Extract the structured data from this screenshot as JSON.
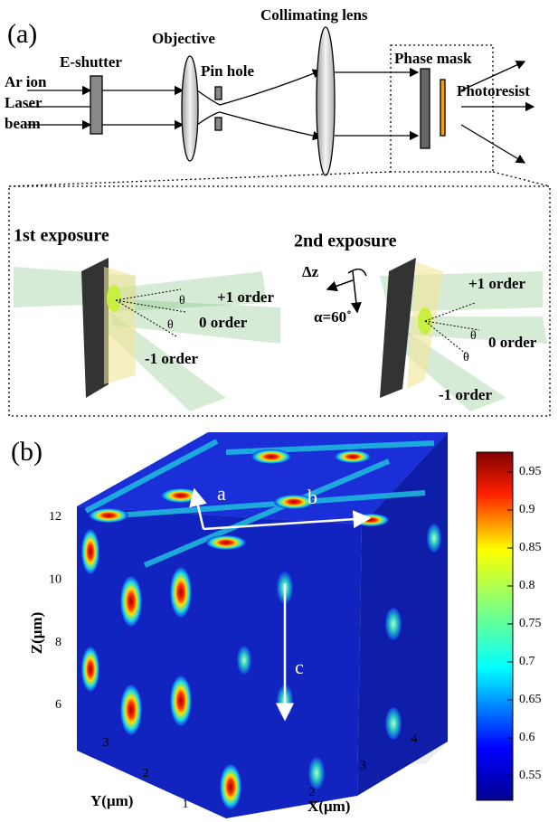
{
  "panel_a": {
    "label": "(a)",
    "laser_source": [
      "Ar ion",
      "Laser",
      "beam"
    ],
    "e_shutter": "E-shutter",
    "objective": "Objective",
    "pin_hole": "Pin hole",
    "collimating_lens": "Collimating lens",
    "phase_mask": "Phase mask",
    "photoresist": "Photoresist",
    "exposure_1": {
      "title": "1st exposure",
      "orders": [
        "+1 order",
        "0 order",
        "-1 order"
      ],
      "angles": [
        "θ",
        "θ"
      ]
    },
    "exposure_2": {
      "title": "2nd exposure",
      "translation": "Δz",
      "rotation": "α=60˚",
      "orders": [
        "+1 order",
        "0 order",
        "-1 order"
      ],
      "angles": [
        "θ",
        "θ"
      ]
    }
  },
  "panel_b": {
    "label": "(b)",
    "vectors": [
      "a",
      "b",
      "c"
    ],
    "z_axis": {
      "label": "Z(μm)",
      "ticks": [
        6,
        8,
        10,
        12
      ]
    },
    "y_axis": {
      "label": "Y(μm)",
      "ticks": [
        1,
        2,
        3
      ]
    },
    "x_axis": {
      "label": "X(μm)",
      "ticks": [
        2,
        3,
        4
      ]
    },
    "colorbar": {
      "ticks": [
        0.55,
        0.6,
        0.65,
        0.7,
        0.75,
        0.8,
        0.85,
        0.9,
        0.95
      ]
    }
  }
}
